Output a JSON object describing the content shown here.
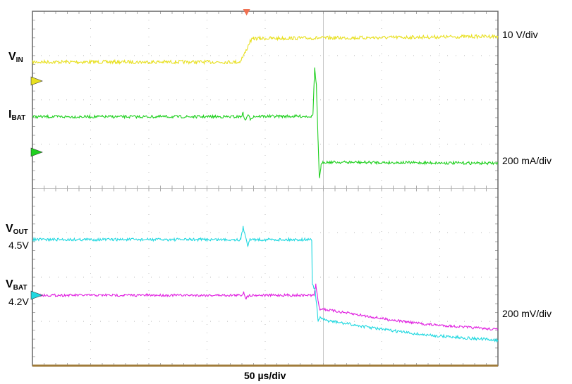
{
  "chart_data": {
    "type": "line",
    "title": "",
    "xlabel": "50 µs/div",
    "x_unit": "µs",
    "xlim": [
      0,
      400
    ],
    "grid": true,
    "divisions": {
      "horizontal": 8,
      "vertical": 8
    },
    "trigger_marker_color": "#f07050",
    "series": [
      {
        "name": "VIN",
        "name_main": "V",
        "name_sub": "IN",
        "color": "#e8e020",
        "unit": "V",
        "scale_label": "10 V/div",
        "points": [
          [
            0,
            4.3
          ],
          [
            178,
            4.3
          ],
          [
            183,
            6.5
          ],
          [
            187,
            9.0
          ],
          [
            190,
            9.6
          ],
          [
            300,
            9.8
          ],
          [
            400,
            10.1
          ]
        ]
      },
      {
        "name": "IBAT",
        "name_main": "I",
        "name_sub": "BAT",
        "color": "#20d020",
        "unit": "mA",
        "scale_label": "200 mA/div",
        "points": [
          [
            0,
            160
          ],
          [
            179,
            160
          ],
          [
            181,
            175
          ],
          [
            183,
            140
          ],
          [
            185,
            170
          ],
          [
            187,
            150
          ],
          [
            190,
            162
          ],
          [
            240,
            162
          ],
          [
            241,
            170
          ],
          [
            242.5,
            380
          ],
          [
            244,
            300
          ],
          [
            245.5,
            40
          ],
          [
            246.5,
            -118
          ],
          [
            248,
            -60
          ],
          [
            250,
            -45
          ],
          [
            400,
            -50
          ]
        ]
      },
      {
        "name": "VOUT",
        "name_main": "V",
        "name_sub": "OUT",
        "color": "#20d8e0",
        "unit": "V",
        "level_label": "4.5V",
        "scale_label": "200 mV/div",
        "points": [
          [
            0,
            4.5
          ],
          [
            179,
            4.5
          ],
          [
            181,
            4.555
          ],
          [
            183,
            4.52
          ],
          [
            185,
            4.475
          ],
          [
            187,
            4.5
          ],
          [
            240,
            4.5
          ],
          [
            240.5,
            4.3
          ],
          [
            243,
            4.27
          ],
          [
            245.5,
            4.13
          ],
          [
            247,
            4.15
          ],
          [
            249,
            4.14
          ],
          [
            252,
            4.135
          ],
          [
            300,
            4.095
          ],
          [
            336,
            4.07
          ],
          [
            400,
            4.045
          ]
        ]
      },
      {
        "name": "VBAT",
        "name_main": "V",
        "name_sub": "BAT",
        "color": "#e020e0",
        "unit": "V",
        "level_label": "4.2V",
        "scale_label": "200 mV/div",
        "points": [
          [
            0,
            4.2
          ],
          [
            180,
            4.2
          ],
          [
            181.5,
            4.215
          ],
          [
            183.5,
            4.185
          ],
          [
            186,
            4.2
          ],
          [
            242,
            4.2
          ],
          [
            243.5,
            4.25
          ],
          [
            245.5,
            4.17
          ],
          [
            247,
            4.135
          ],
          [
            249,
            4.14
          ],
          [
            252,
            4.135
          ],
          [
            300,
            4.095
          ],
          [
            336,
            4.07
          ],
          [
            400,
            4.045
          ]
        ]
      }
    ]
  }
}
